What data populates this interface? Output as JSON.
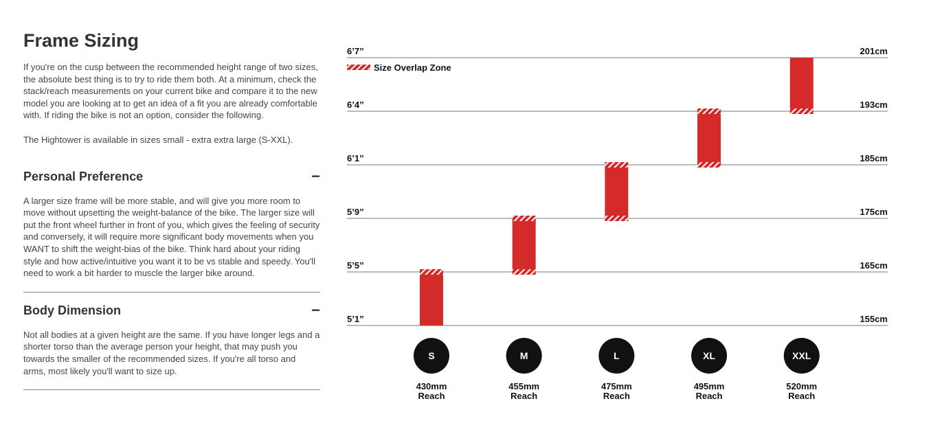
{
  "header": {
    "title": "Frame Sizing"
  },
  "intro": [
    "If you're on the cusp between the recommended height range of two sizes, the absolute best thing is to try to ride them both. At a minimum, check the stack/reach measurements on your current bike and compare it to the new model you are looking at to get an idea of a fit you are already comfortable with. If riding the bike is not an option, consider the following.",
    "The Hightower is available in sizes small - extra extra large (S-XXL)."
  ],
  "sections": [
    {
      "title": "Personal Preference",
      "toggle": "−",
      "body": "A larger size frame will be more stable, and will give you more room to move without upsetting the weight-balance of the bike. The larger size will put the front wheel further in front of you, which gives the feeling of security and conversely, it will require more significant body movements when you WANT to shift the weight-bias of the bike. Think hard about your riding style and how active/intuitive you want it to be vs stable and speedy. You'll need to work a bit harder to muscle the larger bike around."
    },
    {
      "title": "Body Dimension",
      "toggle": "−",
      "body": "Not all bodies at a given height are the same. If you have longer legs and a shorter torso than the average person your height, that may push you towards the smaller of the recommended sizes. If you're all torso and arms, most likely you'll want to size up."
    }
  ],
  "size_chart": {
    "type": "range-bar",
    "legend": "Size Overlap Zone",
    "color": "#d42a2a",
    "yticks": [
      {
        "value": 155,
        "label": "155cm",
        "imperial": "5’1”"
      },
      {
        "value": 165,
        "label": "165cm",
        "imperial": "5’5”"
      },
      {
        "value": 175,
        "label": "175cm",
        "imperial": "5’9”"
      },
      {
        "value": 185,
        "label": "185cm",
        "imperial": "6’1”"
      },
      {
        "value": 193,
        "label": "193cm",
        "imperial": "6’4”"
      },
      {
        "value": 201,
        "label": "201cm",
        "imperial": "6’7”"
      }
    ],
    "categories": [
      "S",
      "M",
      "L",
      "XL",
      "XXL"
    ],
    "ranges": [
      [
        155,
        165
      ],
      [
        165,
        175
      ],
      [
        175,
        185
      ],
      [
        185,
        193
      ],
      [
        193,
        201
      ]
    ],
    "reach": [
      "430mm",
      "455mm",
      "475mm",
      "495mm",
      "520mm"
    ],
    "reach_label": "Reach"
  }
}
